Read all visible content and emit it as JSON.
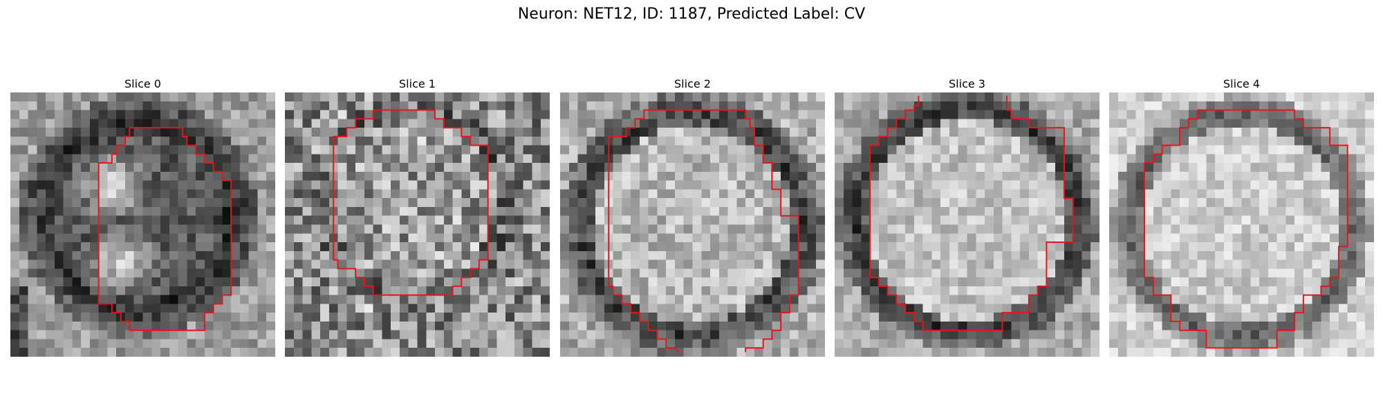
{
  "figure": {
    "title": "Neuron: NET12, ID: 1187, Predicted Label: CV"
  },
  "contour_color": "#e8141c",
  "slices": [
    {
      "title": "Slice 0"
    },
    {
      "title": "Slice 1"
    },
    {
      "title": "Slice 2"
    },
    {
      "title": "Slice 3"
    },
    {
      "title": "Slice 4"
    }
  ]
}
